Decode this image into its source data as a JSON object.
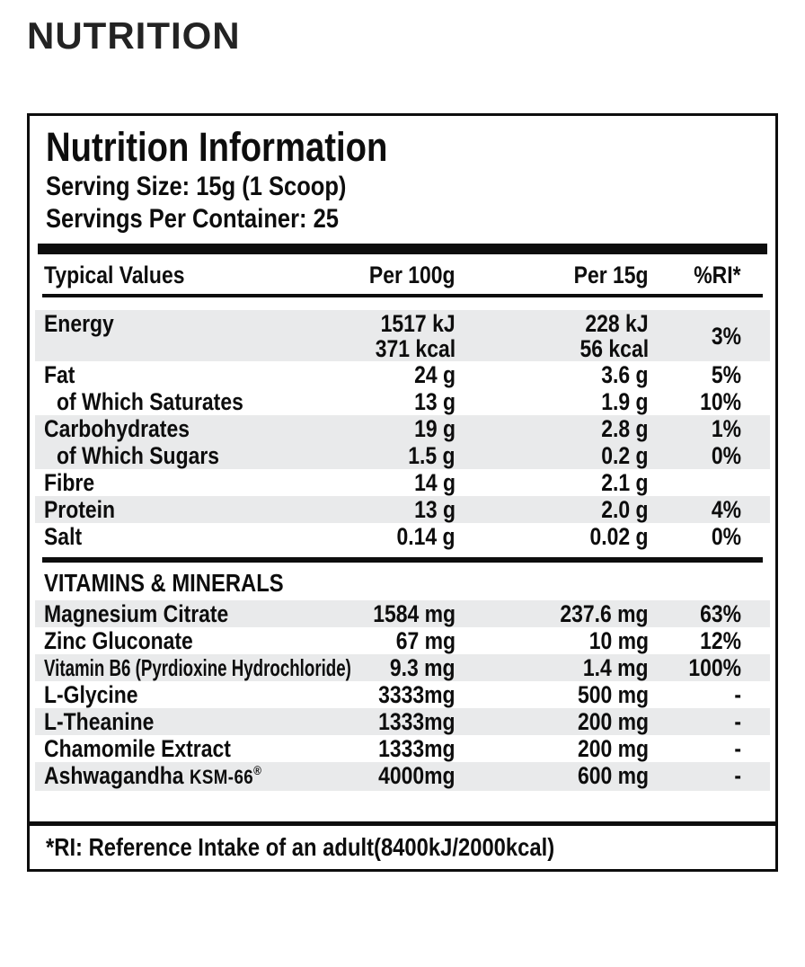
{
  "page": {
    "heading": "NUTRITION"
  },
  "label": {
    "title": "Nutrition Information",
    "serving_size": "Serving Size: 15g (1 Scoop)",
    "servings_per_container": "Servings Per Container: 25",
    "columns": {
      "name": "Typical Values",
      "per100g": "Per 100g",
      "per15g": "Per 15g",
      "ri": "%RI*"
    },
    "rows": [
      {
        "name": "Energy",
        "per100g_line1": "1517 kJ",
        "per100g_line2": "371 kcal",
        "per15g_line1": "228 kJ",
        "per15g_line2": "56 kcal",
        "ri": "3%",
        "shaded": true
      },
      {
        "name": "Fat",
        "per100g": "24 g",
        "per15g": "3.6 g",
        "ri": "5%",
        "shaded": false
      },
      {
        "name": "of Which Saturates",
        "per100g": "13 g",
        "per15g": "1.9 g",
        "ri": "10%",
        "shaded": false,
        "indent": true
      },
      {
        "name": "Carbohydrates",
        "per100g": "19 g",
        "per15g": "2.8 g",
        "ri": "1%",
        "shaded": true
      },
      {
        "name": "of Which Sugars",
        "per100g": "1.5 g",
        "per15g": "0.2 g",
        "ri": "0%",
        "shaded": true,
        "indent": true
      },
      {
        "name": "Fibre",
        "per100g": "14 g",
        "per15g": "2.1 g",
        "ri": "",
        "shaded": false
      },
      {
        "name": "Protein",
        "per100g": "13 g",
        "per15g": "2.0 g",
        "ri": "4%",
        "shaded": true
      },
      {
        "name": "Salt",
        "per100g": "0.14 g",
        "per15g": "0.02 g",
        "ri": "0%",
        "shaded": false
      }
    ],
    "section_header": "VITAMINS & MINERALS",
    "vitamin_rows": [
      {
        "name": "Magnesium Citrate",
        "per100g": "1584 mg",
        "per15g": "237.6 mg",
        "ri": "63%",
        "shaded": true
      },
      {
        "name": "Zinc Gluconate",
        "per100g": "67 mg",
        "per15g": "10 mg",
        "ri": "12%",
        "shaded": false
      },
      {
        "name": "Vitamin B6 (Pyrdioxine Hydrochloride)",
        "per100g": "9.3 mg",
        "per15g": "1.4 mg",
        "ri": "100%",
        "shaded": true
      },
      {
        "name": "L-Glycine",
        "per100g": "3333mg",
        "per15g": "500 mg",
        "ri": "-",
        "shaded": false
      },
      {
        "name": "L-Theanine",
        "per100g": "1333mg",
        "per15g": "200 mg",
        "ri": "-",
        "shaded": true
      },
      {
        "name": "Chamomile Extract",
        "per100g": "1333mg",
        "per15g": "200 mg",
        "ri": "-",
        "shaded": false
      },
      {
        "name": "Ashwagandha",
        "name_suffix": "KSM-66",
        "name_reg": "®",
        "per100g": "4000mg",
        "per15g": "600 mg",
        "ri": "-",
        "shaded": true
      }
    ],
    "footnote": "*RI: Reference Intake of an adult(8400kJ/2000kcal)",
    "colors": {
      "band": "#e9eaeb",
      "ink": "#0d0d0d"
    }
  }
}
